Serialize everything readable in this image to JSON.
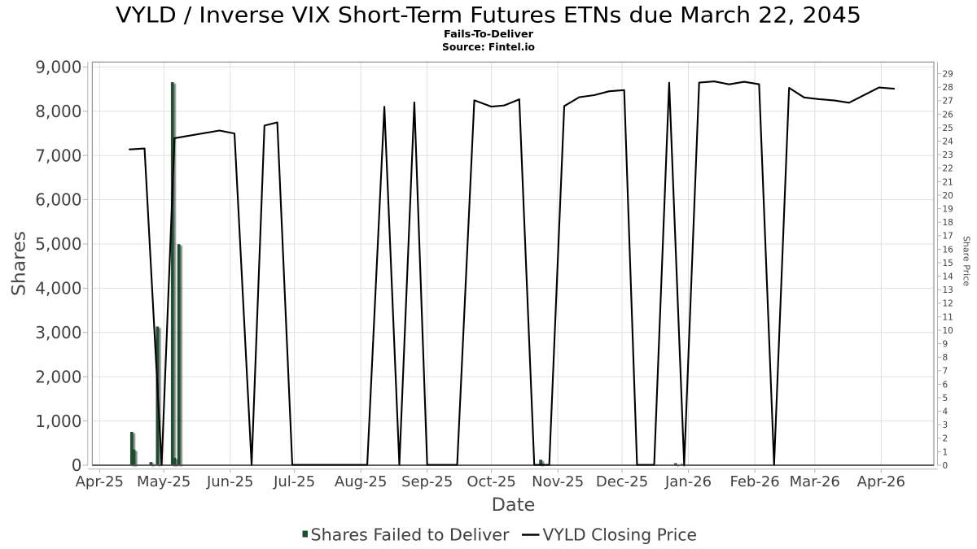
{
  "page": {
    "background": "#ffffff"
  },
  "chart_data": {
    "type": "bar+line",
    "title": "VYLD / Inverse VIX Short-Term Futures ETNs due March 22, 2045",
    "subtitle": "Fails-To-Deliver",
    "source": "Source: Fintel.io",
    "xlabel": "Date",
    "ylabel_left": "Shares",
    "ylabel_right": "Share Price",
    "grid": true,
    "legend_position": "bottom",
    "axis_left": {
      "min": 0,
      "max": 9000,
      "step": 1000
    },
    "axis_right": {
      "min": 0,
      "max": 29,
      "step": 1
    },
    "x_ticks": [
      {
        "label": "Apr-25",
        "date": "2025-04-01"
      },
      {
        "label": "May-25",
        "date": "2025-05-01"
      },
      {
        "label": "Jun-25",
        "date": "2025-06-01"
      },
      {
        "label": "Jul-25",
        "date": "2025-07-01"
      },
      {
        "label": "Aug-25",
        "date": "2025-08-01"
      },
      {
        "label": "Sep-25",
        "date": "2025-09-01"
      },
      {
        "label": "Oct-25",
        "date": "2025-10-01"
      },
      {
        "label": "Nov-25",
        "date": "2025-11-01"
      },
      {
        "label": "Dec-25",
        "date": "2025-12-01"
      },
      {
        "label": "Jan-26",
        "date": "2026-01-01"
      },
      {
        "label": "Feb-26",
        "date": "2026-02-01"
      },
      {
        "label": "Mar-26",
        "date": "2026-03-01"
      },
      {
        "label": "Apr-26",
        "date": "2026-04-01"
      }
    ],
    "series": [
      {
        "name": "Shares Failed to Deliver",
        "type": "bar",
        "axis": "left",
        "color": "#1b5130",
        "points": [
          {
            "date": "2025-04-16",
            "value": 750
          },
          {
            "date": "2025-04-17",
            "value": 350
          },
          {
            "date": "2025-04-25",
            "value": 66
          },
          {
            "date": "2025-04-28",
            "value": 3130
          },
          {
            "date": "2025-05-05",
            "value": 8650
          },
          {
            "date": "2025-05-06",
            "value": 163
          },
          {
            "date": "2025-05-08",
            "value": 4990
          },
          {
            "date": "2025-10-24",
            "value": 120
          },
          {
            "date": "2025-12-26",
            "value": 40
          },
          {
            "date": "2025-12-29",
            "value": 25
          }
        ]
      },
      {
        "name": "VYLD Closing Price",
        "type": "line",
        "axis": "right",
        "color": "#000000",
        "points": [
          {
            "date": "2025-04-15",
            "value": 23.39
          },
          {
            "date": "2025-04-22",
            "value": 23.46
          },
          {
            "date": "2025-04-30",
            "value": 0
          },
          {
            "date": "2025-05-06",
            "value": 24.22
          },
          {
            "date": "2025-05-27",
            "value": 24.79
          },
          {
            "date": "2025-06-03",
            "value": 24.57
          },
          {
            "date": "2025-06-11",
            "value": 0
          },
          {
            "date": "2025-06-17",
            "value": 25.16
          },
          {
            "date": "2025-06-23",
            "value": 25.39
          },
          {
            "date": "2025-06-30",
            "value": 0
          },
          {
            "date": "2025-08-04",
            "value": 0
          },
          {
            "date": "2025-08-12",
            "value": 26.55
          },
          {
            "date": "2025-08-19",
            "value": 0
          },
          {
            "date": "2025-08-26",
            "value": 26.87
          },
          {
            "date": "2025-09-01",
            "value": 0
          },
          {
            "date": "2025-09-15",
            "value": 0
          },
          {
            "date": "2025-09-23",
            "value": 27.03
          },
          {
            "date": "2025-10-01",
            "value": 26.56
          },
          {
            "date": "2025-10-07",
            "value": 26.65
          },
          {
            "date": "2025-10-14",
            "value": 27.1
          },
          {
            "date": "2025-10-21",
            "value": 0
          },
          {
            "date": "2025-10-28",
            "value": 0
          },
          {
            "date": "2025-11-04",
            "value": 26.6
          },
          {
            "date": "2025-11-11",
            "value": 27.26
          },
          {
            "date": "2025-11-18",
            "value": 27.41
          },
          {
            "date": "2025-11-25",
            "value": 27.7
          },
          {
            "date": "2025-12-02",
            "value": 27.78
          },
          {
            "date": "2025-12-08",
            "value": 0
          },
          {
            "date": "2025-12-16",
            "value": 0
          },
          {
            "date": "2025-12-23",
            "value": 28.33
          },
          {
            "date": "2025-12-30",
            "value": 0
          },
          {
            "date": "2026-01-06",
            "value": 28.34
          },
          {
            "date": "2026-01-13",
            "value": 28.43
          },
          {
            "date": "2026-01-20",
            "value": 28.21
          },
          {
            "date": "2026-01-27",
            "value": 28.4
          },
          {
            "date": "2026-02-03",
            "value": 28.22
          },
          {
            "date": "2026-02-10",
            "value": 0
          },
          {
            "date": "2026-02-17",
            "value": 27.95
          },
          {
            "date": "2026-02-24",
            "value": 27.24
          },
          {
            "date": "2026-03-03",
            "value": 27.11
          },
          {
            "date": "2026-03-10",
            "value": 27.02
          },
          {
            "date": "2026-03-17",
            "value": 26.85
          },
          {
            "date": "2026-03-31",
            "value": 27.98
          },
          {
            "date": "2026-04-07",
            "value": 27.89
          }
        ]
      }
    ],
    "legend": [
      {
        "label": "Shares Failed to Deliver",
        "marker": "square",
        "color": "#1b5130"
      },
      {
        "label": "VYLD Closing Price",
        "marker": "dash",
        "color": "#000000"
      }
    ]
  },
  "colors": {
    "bar": "#1b5130",
    "bar_edge": "#10381f",
    "line": "#000000",
    "grid": "#e0e0e0",
    "plot_border": "#999999",
    "axis_spine": "#b3b3b3",
    "axis_bottom_line": "#4d4d4d",
    "tick_label": "#404040",
    "axis_title": "#4a4a4a",
    "title_color": "#000000",
    "legend_text": "#3f3f3f"
  }
}
